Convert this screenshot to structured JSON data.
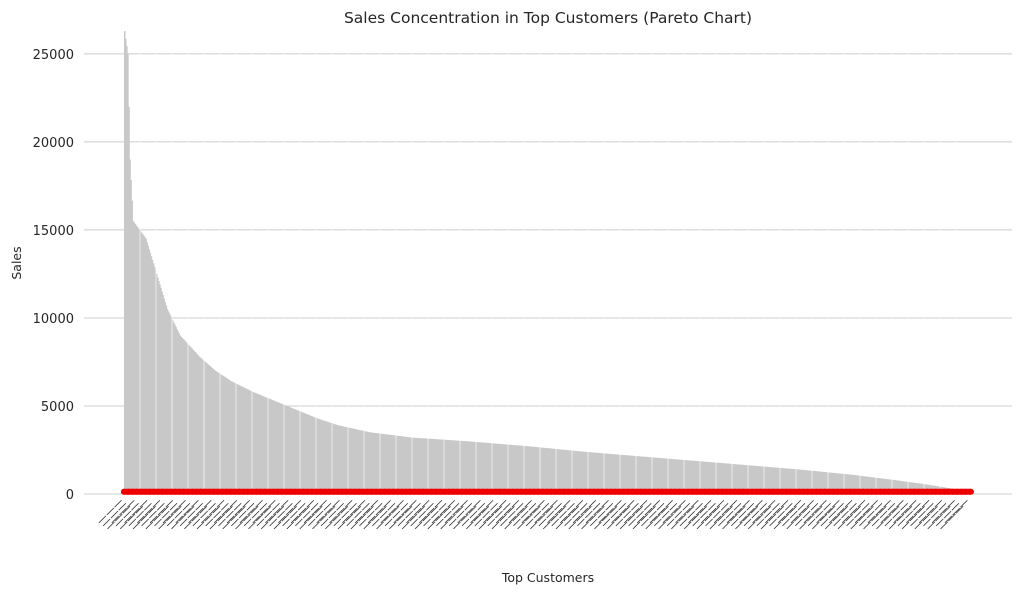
{
  "chart_data": {
    "type": "bar",
    "title": "Sales Concentration in Top Customers (Pareto Chart)",
    "xlabel": "Top Customers",
    "ylabel": "Sales",
    "ylim": [
      0,
      26300
    ],
    "yticks": [
      0,
      5000,
      10000,
      15000,
      20000,
      25000
    ],
    "grid": true,
    "bar_color": "#c8c8c8",
    "line_color": "#ee0000",
    "bar_count": 793,
    "bar_anchors": [
      [
        0,
        26300
      ],
      [
        3,
        25000
      ],
      [
        5,
        19000
      ],
      [
        8,
        15500
      ],
      [
        20,
        14500
      ],
      [
        30,
        12500
      ],
      [
        40,
        10500
      ],
      [
        52,
        9000
      ],
      [
        70,
        7800
      ],
      [
        85,
        7000
      ],
      [
        100,
        6400
      ],
      [
        120,
        5800
      ],
      [
        140,
        5300
      ],
      [
        160,
        4800
      ],
      [
        180,
        4300
      ],
      [
        200,
        3900
      ],
      [
        230,
        3500
      ],
      [
        270,
        3200
      ],
      [
        320,
        3000
      ],
      [
        380,
        2700
      ],
      [
        430,
        2400
      ],
      [
        480,
        2150
      ],
      [
        530,
        1900
      ],
      [
        580,
        1650
      ],
      [
        630,
        1400
      ],
      [
        680,
        1100
      ],
      [
        720,
        800
      ],
      [
        750,
        550
      ],
      [
        770,
        350
      ],
      [
        785,
        200
      ],
      [
        793,
        150
      ]
    ],
    "line_value": 130
  }
}
